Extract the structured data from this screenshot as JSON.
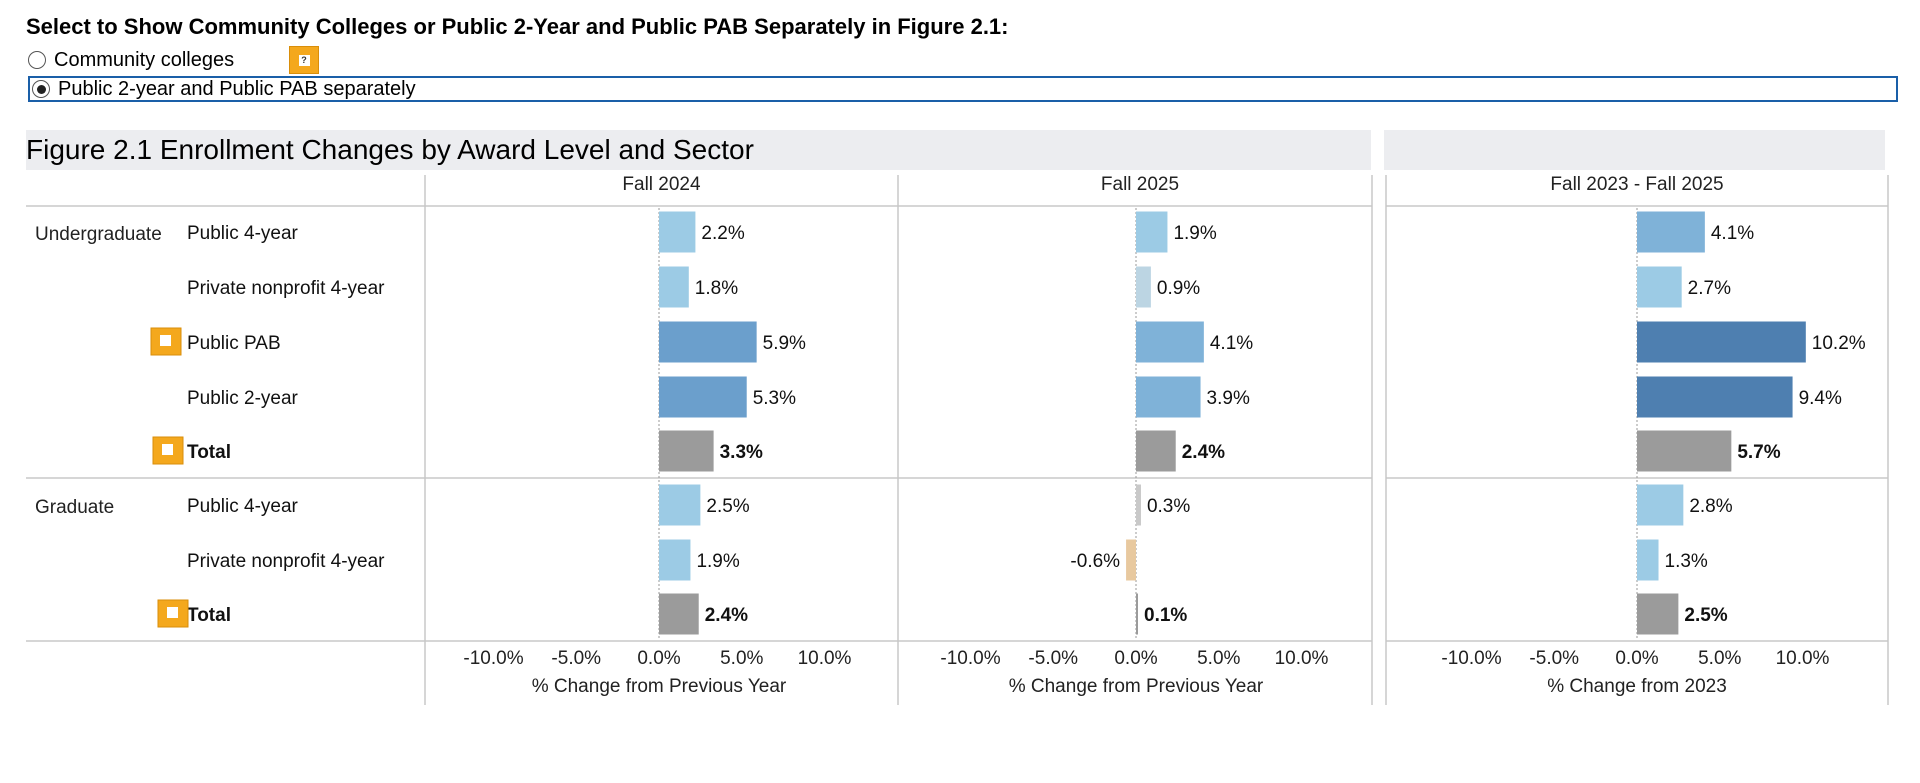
{
  "selector": {
    "title": "Select to Show Community Colleges or Public 2-Year and Public PAB Separately in Figure 2.1:",
    "options": [
      {
        "label": "Community colleges",
        "selected": false
      },
      {
        "label": "Public 2-year and Public PAB separately",
        "selected": true
      }
    ]
  },
  "chart_data": {
    "type": "bar",
    "title": "Figure 2.1 Enrollment Changes by Award Level and Sector",
    "panels": [
      {
        "header": "Fall 2024",
        "xlabel": "% Change from Previous Year"
      },
      {
        "header": "Fall 2025",
        "xlabel": "% Change from Previous Year"
      },
      {
        "header": "Fall 2023 - Fall 2025",
        "xlabel": "% Change from 2023"
      }
    ],
    "xlim": [
      -15,
      15
    ],
    "ticks": [
      "-10.0%",
      "-5.0%",
      "0.0%",
      "5.0%",
      "10.0%"
    ],
    "tick_values": [
      -10,
      -5,
      0,
      5,
      10
    ],
    "groups": [
      {
        "label": "Undergraduate",
        "rows": [
          {
            "label": "Public 4-year",
            "bold": false,
            "help": false,
            "values": [
              2.2,
              1.9,
              4.1
            ],
            "labels": [
              "2.2%",
              "1.9%",
              "4.1%"
            ]
          },
          {
            "label": "Private nonprofit 4-year",
            "bold": false,
            "help": false,
            "values": [
              1.8,
              0.9,
              2.7
            ],
            "labels": [
              "1.8%",
              "0.9%",
              "2.7%"
            ]
          },
          {
            "label": "Public PAB",
            "bold": false,
            "help": true,
            "values": [
              5.9,
              4.1,
              10.2
            ],
            "labels": [
              "5.9%",
              "4.1%",
              "10.2%"
            ]
          },
          {
            "label": "Public 2-year",
            "bold": false,
            "help": false,
            "values": [
              5.3,
              3.9,
              9.4
            ],
            "labels": [
              "5.3%",
              "3.9%",
              "9.4%"
            ]
          },
          {
            "label": "Total",
            "bold": true,
            "help": true,
            "values": [
              3.3,
              2.4,
              5.7
            ],
            "labels": [
              "3.3%",
              "2.4%",
              "5.7%"
            ]
          }
        ]
      },
      {
        "label": "Graduate",
        "rows": [
          {
            "label": "Public 4-year",
            "bold": false,
            "help": false,
            "values": [
              2.5,
              0.3,
              2.8
            ],
            "labels": [
              "2.5%",
              "0.3%",
              "2.8%"
            ]
          },
          {
            "label": "Private nonprofit 4-year",
            "bold": false,
            "help": false,
            "values": [
              1.9,
              -0.6,
              1.3
            ],
            "labels": [
              "1.9%",
              "-0.6%",
              "1.3%"
            ]
          },
          {
            "label": "Total",
            "bold": true,
            "help": true,
            "values": [
              2.4,
              0.1,
              2.5
            ],
            "labels": [
              "2.4%",
              "0.1%",
              "2.5%"
            ]
          }
        ]
      }
    ],
    "colors": {
      "total": "#9b9b9b",
      "negative": "#e8c99f",
      "light": "#bcd5e3",
      "low": "#9ccbe5",
      "mid": "#7fb2d8",
      "high": "#6b9fcc",
      "highest": "#4e7fb0"
    }
  }
}
